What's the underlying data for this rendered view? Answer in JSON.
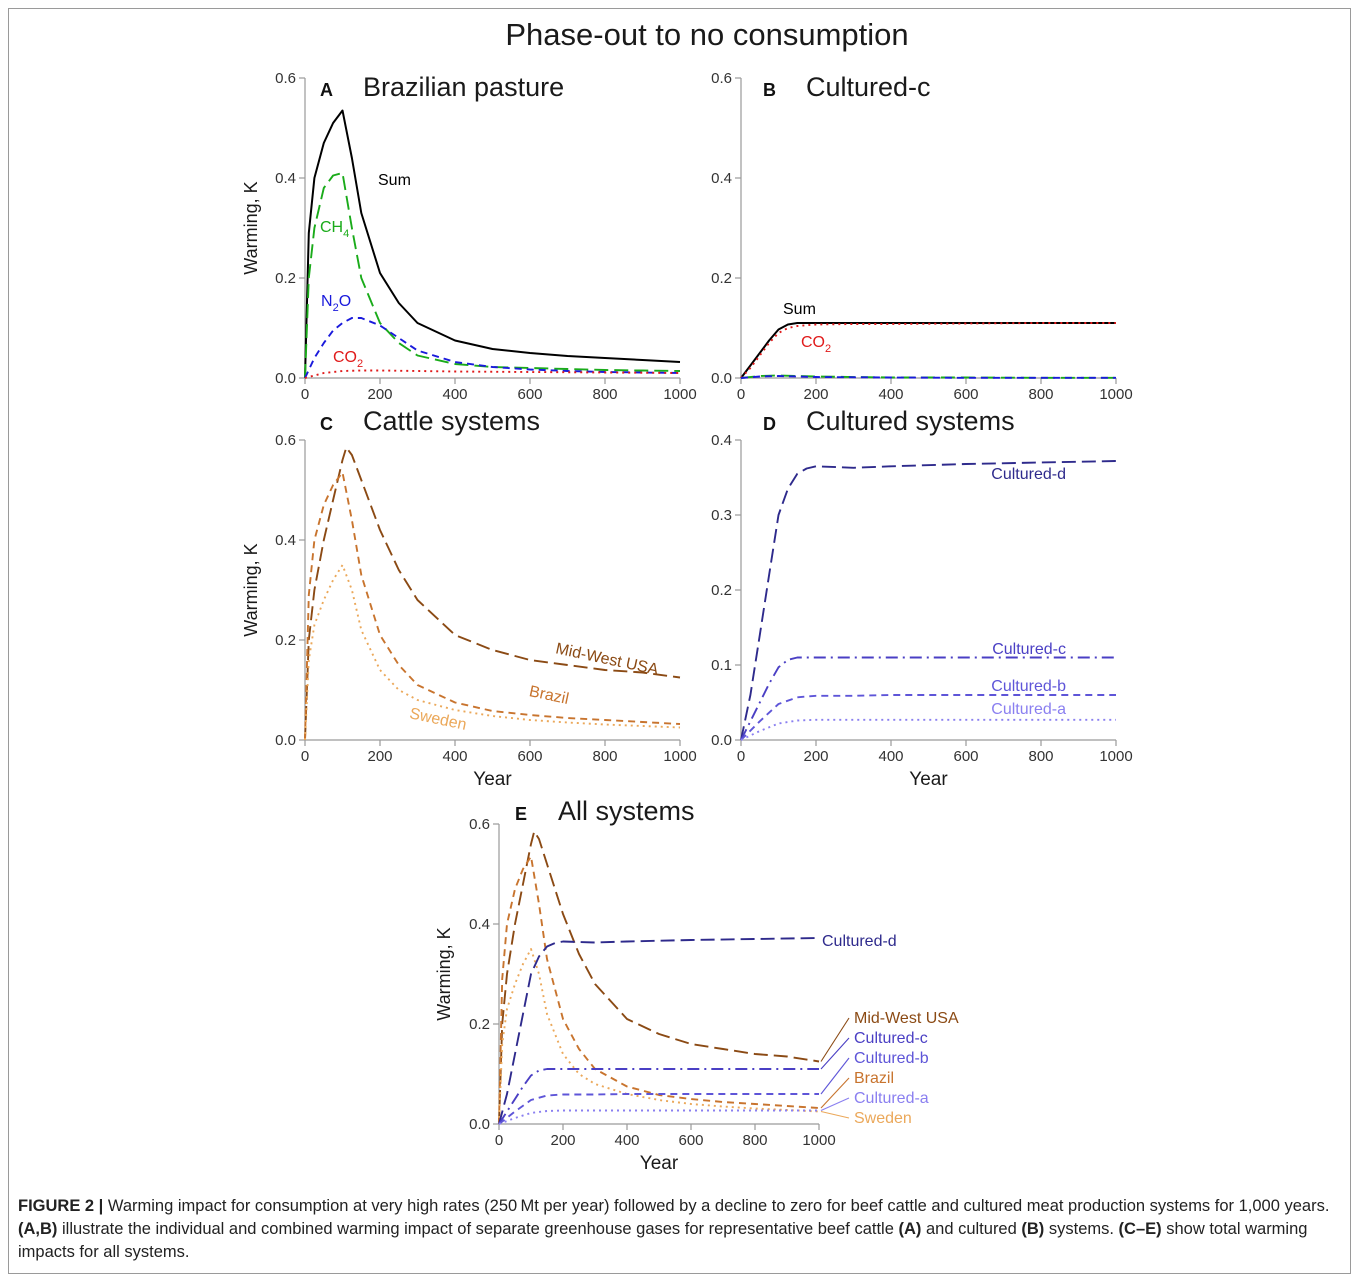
{
  "figure": {
    "main_title": "Phase-out to no consumption",
    "caption": {
      "label": "FIGURE 2 |",
      "parts": [
        {
          "t": "Warming impact for consumption at very high rates (250 Mt per year) followed by a decline to zero for beef cattle and cultured meat production systems for 1,000 years. ",
          "b": false
        },
        {
          "t": "(A,B)",
          "b": true
        },
        {
          "t": " illustrate the individual and combined warming impact of separate greenhouse gases for representative beef cattle ",
          "b": false
        },
        {
          "t": "(A)",
          "b": true
        },
        {
          "t": " and cultured ",
          "b": false
        },
        {
          "t": "(B)",
          "b": true
        },
        {
          "t": " systems. ",
          "b": false
        },
        {
          "t": "(C–E)",
          "b": true
        },
        {
          "t": " show total warming impacts for all systems.",
          "b": false
        }
      ]
    }
  },
  "colors": {
    "sum": "#000000",
    "ch4": "#1aab1a",
    "n2o": "#1a1adc",
    "co2": "#e01a1a",
    "midwest": "#8b4a14",
    "brazil": "#c8742e",
    "sweden": "#eba85a",
    "cultured_d": "#2e2a8c",
    "cultured_c": "#4a3fc4",
    "cultured_b": "#5e55d8",
    "cultured_a": "#8a7ff0"
  },
  "chart_data": [
    {
      "type": "line",
      "panel": "A",
      "title": "Brazilian pasture",
      "xlabel": "",
      "ylabel": "Warming, K",
      "xlim": [
        0,
        1000
      ],
      "ylim": [
        0,
        0.6
      ],
      "xticks": [
        0,
        200,
        400,
        600,
        800,
        1000
      ],
      "yticks": [
        0.0,
        0.2,
        0.4,
        0.6
      ],
      "series": [
        {
          "name": "Sum",
          "label": "Sum",
          "color": "#000000",
          "dash": "solid",
          "x": [
            0,
            10,
            25,
            50,
            75,
            100,
            125,
            150,
            200,
            250,
            300,
            400,
            500,
            600,
            700,
            800,
            900,
            1000
          ],
          "y": [
            0,
            0.29,
            0.4,
            0.47,
            0.51,
            0.535,
            0.44,
            0.33,
            0.21,
            0.15,
            0.11,
            0.075,
            0.058,
            0.05,
            0.044,
            0.04,
            0.036,
            0.032
          ]
        },
        {
          "name": "CH4",
          "label_main": "CH",
          "label_sub": "4",
          "color": "#1aab1a",
          "dash": "long",
          "x": [
            0,
            10,
            25,
            50,
            75,
            100,
            125,
            150,
            200,
            250,
            300,
            400,
            500,
            600,
            700,
            800,
            900,
            1000
          ],
          "y": [
            0,
            0.2,
            0.3,
            0.38,
            0.405,
            0.41,
            0.3,
            0.2,
            0.11,
            0.07,
            0.045,
            0.028,
            0.022,
            0.02,
            0.018,
            0.016,
            0.015,
            0.014
          ]
        },
        {
          "name": "N2O",
          "label_main": "N",
          "label_sub": "2",
          "label_tail": "O",
          "color": "#1a1adc",
          "dash": "short",
          "x": [
            0,
            25,
            50,
            75,
            100,
            125,
            150,
            200,
            250,
            300,
            400,
            500,
            600,
            700,
            800,
            900,
            1000
          ],
          "y": [
            0,
            0.04,
            0.07,
            0.095,
            0.11,
            0.12,
            0.12,
            0.105,
            0.08,
            0.055,
            0.032,
            0.022,
            0.017,
            0.014,
            0.012,
            0.011,
            0.01
          ]
        },
        {
          "name": "CO2",
          "label_main": "CO",
          "label_sub": "2",
          "color": "#e01a1a",
          "dash": "dot",
          "x": [
            0,
            50,
            100,
            150,
            200,
            400,
            600,
            800,
            1000
          ],
          "y": [
            0,
            0.01,
            0.014,
            0.015,
            0.015,
            0.013,
            0.012,
            0.011,
            0.01
          ]
        }
      ]
    },
    {
      "type": "line",
      "panel": "B",
      "title": "Cultured-c",
      "xlabel": "",
      "ylabel": "",
      "xlim": [
        0,
        1000
      ],
      "ylim": [
        0,
        0.6
      ],
      "xticks": [
        0,
        200,
        400,
        600,
        800,
        1000
      ],
      "yticks": [
        0.0,
        0.2,
        0.4,
        0.6
      ],
      "series": [
        {
          "name": "Sum",
          "label": "Sum",
          "color": "#000000",
          "dash": "solid",
          "x": [
            0,
            25,
            50,
            75,
            100,
            125,
            150,
            200,
            300,
            400,
            600,
            800,
            1000
          ],
          "y": [
            0,
            0.025,
            0.05,
            0.075,
            0.097,
            0.107,
            0.11,
            0.11,
            0.11,
            0.11,
            0.11,
            0.11,
            0.11
          ]
        },
        {
          "name": "CO2",
          "label_main": "CO",
          "label_sub": "2",
          "color": "#e01a1a",
          "dash": "dot",
          "x": [
            0,
            25,
            50,
            75,
            100,
            125,
            150,
            200,
            300,
            400,
            600,
            800,
            1000
          ],
          "y": [
            0,
            0.02,
            0.045,
            0.07,
            0.09,
            0.1,
            0.104,
            0.107,
            0.108,
            0.108,
            0.109,
            0.11,
            0.11
          ]
        },
        {
          "name": "CH4",
          "color": "#1aab1a",
          "dash": "long",
          "x": [
            0,
            50,
            100,
            150,
            200,
            400,
            600,
            800,
            1000
          ],
          "y": [
            0,
            0.004,
            0.005,
            0.004,
            0.003,
            0.001,
            0.001,
            0.0005,
            0.0005
          ]
        },
        {
          "name": "N2O",
          "color": "#1a1adc",
          "dash": "short",
          "x": [
            0,
            50,
            100,
            150,
            200,
            400,
            600,
            800,
            1000
          ],
          "y": [
            0,
            0.003,
            0.004,
            0.003,
            0.002,
            0.001,
            0.0005,
            0.0005,
            0.0005
          ]
        }
      ]
    },
    {
      "type": "line",
      "panel": "C",
      "title": "Cattle systems",
      "xlabel": "Year",
      "ylabel": "Warming, K",
      "xlim": [
        0,
        1000
      ],
      "ylim": [
        0,
        0.6
      ],
      "xticks": [
        0,
        200,
        400,
        600,
        800,
        1000
      ],
      "yticks": [
        0.0,
        0.2,
        0.4,
        0.6
      ],
      "series": [
        {
          "name": "Mid-West USA",
          "label": "Mid-West USA",
          "color": "#8b4a14",
          "dash": "long",
          "x": [
            0,
            10,
            25,
            50,
            75,
            100,
            110,
            125,
            150,
            200,
            250,
            300,
            400,
            500,
            600,
            700,
            800,
            900,
            1000
          ],
          "y": [
            0,
            0.2,
            0.3,
            0.4,
            0.48,
            0.56,
            0.585,
            0.57,
            0.52,
            0.42,
            0.34,
            0.28,
            0.21,
            0.18,
            0.16,
            0.15,
            0.14,
            0.135,
            0.125
          ]
        },
        {
          "name": "Brazil",
          "label": "Brazil",
          "color": "#c8742e",
          "dash": "short",
          "x": [
            0,
            10,
            25,
            50,
            75,
            100,
            125,
            150,
            200,
            250,
            300,
            400,
            500,
            600,
            700,
            800,
            900,
            1000
          ],
          "y": [
            0,
            0.29,
            0.4,
            0.47,
            0.51,
            0.535,
            0.44,
            0.33,
            0.21,
            0.15,
            0.11,
            0.075,
            0.058,
            0.05,
            0.044,
            0.04,
            0.036,
            0.032
          ]
        },
        {
          "name": "Sweden",
          "label": "Sweden",
          "color": "#eba85a",
          "dash": "dot",
          "x": [
            0,
            10,
            25,
            50,
            75,
            100,
            125,
            150,
            200,
            250,
            300,
            400,
            500,
            600,
            700,
            800,
            900,
            1000
          ],
          "y": [
            0,
            0.16,
            0.23,
            0.28,
            0.32,
            0.35,
            0.3,
            0.22,
            0.14,
            0.1,
            0.08,
            0.06,
            0.048,
            0.04,
            0.035,
            0.031,
            0.028,
            0.025
          ]
        }
      ]
    },
    {
      "type": "line",
      "panel": "D",
      "title": "Cultured systems",
      "xlabel": "Year",
      "ylabel": "",
      "xlim": [
        0,
        1000
      ],
      "ylim": [
        0,
        0.4
      ],
      "xticks": [
        0,
        200,
        400,
        600,
        800,
        1000
      ],
      "yticks": [
        0.0,
        0.1,
        0.2,
        0.3,
        0.4
      ],
      "series": [
        {
          "name": "Cultured-d",
          "label": "Cultured-d",
          "color": "#2e2a8c",
          "dash": "long",
          "x": [
            0,
            25,
            50,
            75,
            100,
            125,
            150,
            175,
            200,
            300,
            400,
            600,
            800,
            1000
          ],
          "y": [
            0,
            0.06,
            0.14,
            0.22,
            0.3,
            0.335,
            0.355,
            0.362,
            0.365,
            0.363,
            0.365,
            0.368,
            0.37,
            0.372
          ]
        },
        {
          "name": "Cultured-c",
          "label": "Cultured-c",
          "color": "#4a3fc4",
          "dash": "dashdot",
          "x": [
            0,
            25,
            50,
            75,
            100,
            125,
            150,
            200,
            300,
            400,
            600,
            800,
            1000
          ],
          "y": [
            0,
            0.025,
            0.05,
            0.075,
            0.097,
            0.107,
            0.11,
            0.11,
            0.11,
            0.11,
            0.11,
            0.11,
            0.11
          ]
        },
        {
          "name": "Cultured-b",
          "label": "Cultured-b",
          "color": "#5e55d8",
          "dash": "short",
          "x": [
            0,
            50,
            100,
            150,
            200,
            300,
            400,
            600,
            800,
            1000
          ],
          "y": [
            0,
            0.025,
            0.048,
            0.057,
            0.059,
            0.059,
            0.06,
            0.06,
            0.06,
            0.06
          ]
        },
        {
          "name": "Cultured-a",
          "label": "Cultured-a",
          "color": "#8a7ff0",
          "dash": "dot",
          "x": [
            0,
            50,
            100,
            150,
            200,
            300,
            400,
            600,
            800,
            1000
          ],
          "y": [
            0,
            0.012,
            0.022,
            0.026,
            0.027,
            0.027,
            0.027,
            0.027,
            0.027,
            0.027
          ]
        }
      ]
    },
    {
      "type": "line",
      "panel": "E",
      "title": "All systems",
      "xlabel": "Year",
      "ylabel": "Warming, K",
      "xlim": [
        0,
        1000
      ],
      "ylim": [
        0,
        0.6
      ],
      "xticks": [
        0,
        200,
        400,
        600,
        800,
        1000
      ],
      "yticks": [
        0.0,
        0.2,
        0.4,
        0.6
      ],
      "series": [
        {
          "name": "Mid-West USA",
          "label": "Mid-West USA",
          "color": "#8b4a14",
          "dash": "long",
          "x": [
            0,
            10,
            25,
            50,
            75,
            100,
            110,
            125,
            150,
            200,
            250,
            300,
            400,
            500,
            600,
            700,
            800,
            900,
            1000
          ],
          "y": [
            0,
            0.2,
            0.3,
            0.4,
            0.48,
            0.56,
            0.585,
            0.57,
            0.52,
            0.42,
            0.34,
            0.28,
            0.21,
            0.18,
            0.16,
            0.15,
            0.14,
            0.135,
            0.125
          ]
        },
        {
          "name": "Brazil",
          "label": "Brazil",
          "color": "#c8742e",
          "dash": "short",
          "x": [
            0,
            10,
            25,
            50,
            75,
            100,
            125,
            150,
            200,
            250,
            300,
            400,
            500,
            600,
            700,
            800,
            900,
            1000
          ],
          "y": [
            0,
            0.29,
            0.4,
            0.47,
            0.51,
            0.535,
            0.44,
            0.33,
            0.21,
            0.15,
            0.11,
            0.075,
            0.058,
            0.05,
            0.044,
            0.04,
            0.036,
            0.032
          ]
        },
        {
          "name": "Sweden",
          "label": "Sweden",
          "color": "#eba85a",
          "dash": "dot",
          "x": [
            0,
            10,
            25,
            50,
            75,
            100,
            125,
            150,
            200,
            250,
            300,
            400,
            500,
            600,
            700,
            800,
            900,
            1000
          ],
          "y": [
            0,
            0.16,
            0.23,
            0.28,
            0.32,
            0.35,
            0.3,
            0.22,
            0.14,
            0.1,
            0.08,
            0.06,
            0.048,
            0.04,
            0.035,
            0.031,
            0.028,
            0.025
          ]
        },
        {
          "name": "Cultured-d",
          "label": "Cultured-d",
          "color": "#2e2a8c",
          "dash": "long",
          "x": [
            0,
            25,
            50,
            75,
            100,
            125,
            150,
            175,
            200,
            300,
            400,
            600,
            800,
            1000
          ],
          "y": [
            0,
            0.06,
            0.14,
            0.22,
            0.3,
            0.335,
            0.355,
            0.362,
            0.365,
            0.363,
            0.365,
            0.368,
            0.37,
            0.372
          ]
        },
        {
          "name": "Cultured-c",
          "label": "Cultured-c",
          "color": "#4a3fc4",
          "dash": "dashdot",
          "x": [
            0,
            25,
            50,
            75,
            100,
            125,
            150,
            200,
            300,
            400,
            600,
            800,
            1000
          ],
          "y": [
            0,
            0.025,
            0.05,
            0.075,
            0.097,
            0.107,
            0.11,
            0.11,
            0.11,
            0.11,
            0.11,
            0.11,
            0.11
          ]
        },
        {
          "name": "Cultured-b",
          "label": "Cultured-b",
          "color": "#5e55d8",
          "dash": "short",
          "x": [
            0,
            50,
            100,
            150,
            200,
            300,
            400,
            600,
            800,
            1000
          ],
          "y": [
            0,
            0.025,
            0.048,
            0.057,
            0.059,
            0.059,
            0.06,
            0.06,
            0.06,
            0.06
          ]
        },
        {
          "name": "Cultured-a",
          "label": "Cultured-a",
          "color": "#8a7ff0",
          "dash": "dot",
          "x": [
            0,
            50,
            100,
            150,
            200,
            300,
            400,
            600,
            800,
            1000
          ],
          "y": [
            0,
            0.012,
            0.022,
            0.026,
            0.027,
            0.027,
            0.027,
            0.027,
            0.027,
            0.027
          ]
        }
      ]
    }
  ]
}
